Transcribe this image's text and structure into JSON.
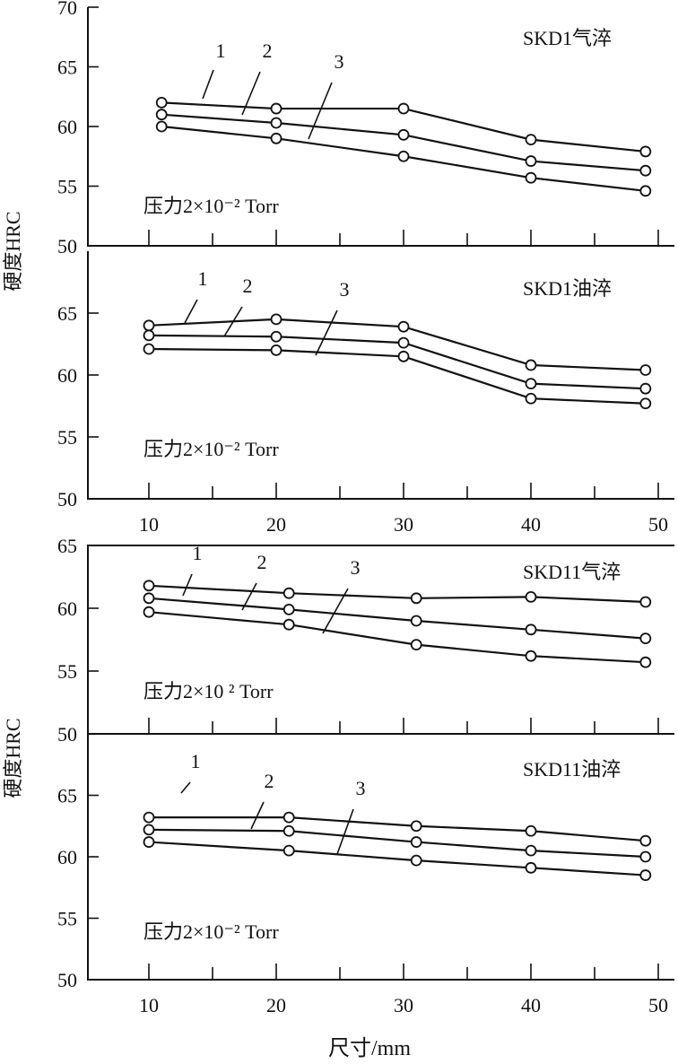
{
  "chart_data": [
    {
      "type": "line",
      "title": "SKD1气淬",
      "note": "压力2×10⁻² Torr",
      "ylim": [
        50,
        70
      ],
      "yticks": [
        50,
        55,
        60,
        65,
        70
      ],
      "xlim": [
        5,
        50
      ],
      "series": [
        {
          "name": "1",
          "x": [
            11,
            20,
            30,
            40,
            49
          ],
          "values": [
            62.0,
            61.5,
            61.5,
            58.9,
            57.9
          ]
        },
        {
          "name": "2",
          "x": [
            11,
            20,
            30,
            40,
            49
          ],
          "values": [
            61.0,
            60.3,
            59.3,
            57.1,
            56.3
          ]
        },
        {
          "name": "3",
          "x": [
            11,
            20,
            30,
            40,
            49
          ],
          "values": [
            60.0,
            59.0,
            57.5,
            55.7,
            54.6
          ]
        }
      ]
    },
    {
      "type": "line",
      "title": "SKD1油淬",
      "note": "压力2×10⁻² Torr",
      "ylim": [
        50,
        70
      ],
      "yticks": [
        50,
        55,
        60,
        65
      ],
      "xlim": [
        5,
        50
      ],
      "series": [
        {
          "name": "1",
          "x": [
            10,
            20,
            30,
            40,
            49
          ],
          "values": [
            64.0,
            64.5,
            63.9,
            60.8,
            60.4
          ]
        },
        {
          "name": "2",
          "x": [
            10,
            20,
            30,
            40,
            49
          ],
          "values": [
            63.2,
            63.1,
            62.6,
            59.3,
            58.9
          ]
        },
        {
          "name": "3",
          "x": [
            10,
            20,
            30,
            40,
            49
          ],
          "values": [
            62.1,
            62.0,
            61.5,
            58.1,
            57.7
          ]
        }
      ]
    },
    {
      "type": "line",
      "title": "SKD11气淬",
      "note": "压力2×10 ² Torr",
      "ylim": [
        50,
        65
      ],
      "yticks": [
        50,
        55,
        60,
        65
      ],
      "xlim": [
        5,
        50
      ],
      "series": [
        {
          "name": "1",
          "x": [
            10,
            21,
            31,
            40,
            49
          ],
          "values": [
            61.8,
            61.2,
            60.8,
            60.9,
            60.5
          ]
        },
        {
          "name": "2",
          "x": [
            10,
            21,
            31,
            40,
            49
          ],
          "values": [
            60.8,
            59.9,
            59.0,
            58.3,
            57.6
          ]
        },
        {
          "name": "3",
          "x": [
            10,
            21,
            31,
            40,
            49
          ],
          "values": [
            59.7,
            58.7,
            57.1,
            56.2,
            55.7
          ]
        }
      ]
    },
    {
      "type": "line",
      "title": "SKD11油淬",
      "note": "压力2×10⁻² Torr",
      "ylim": [
        50,
        70
      ],
      "yticks": [
        50,
        55,
        60,
        65
      ],
      "xlim": [
        5,
        50
      ],
      "series": [
        {
          "name": "1",
          "x": [
            10,
            21,
            31,
            40,
            49
          ],
          "values": [
            63.2,
            63.2,
            62.5,
            62.1,
            61.3
          ]
        },
        {
          "name": "2",
          "x": [
            10,
            21,
            31,
            40,
            49
          ],
          "values": [
            62.2,
            62.1,
            61.2,
            60.5,
            60.0
          ]
        },
        {
          "name": "3",
          "x": [
            10,
            21,
            31,
            40,
            49
          ],
          "values": [
            61.2,
            60.5,
            59.7,
            59.1,
            58.5
          ]
        }
      ]
    }
  ],
  "axes": {
    "ylabel": "硬度HRC",
    "xlabel": "尺寸/mm",
    "xticks": [
      10,
      20,
      30,
      40,
      50
    ]
  }
}
